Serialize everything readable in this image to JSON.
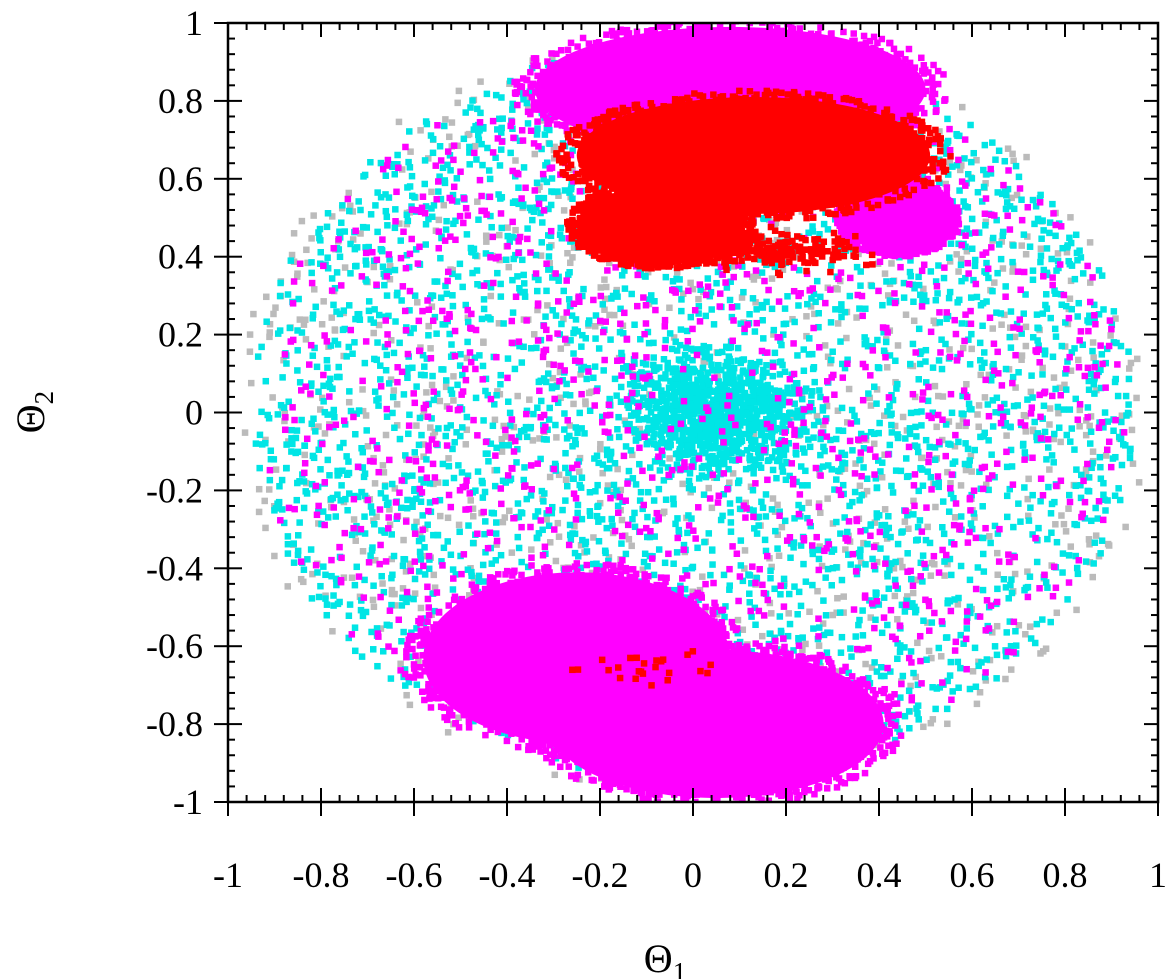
{
  "chart_data": {
    "type": "scatter",
    "title": "",
    "xlabel": "Θ",
    "xlabel_subscript": "1",
    "ylabel": "Θ",
    "ylabel_subscript": "2",
    "xlim": [
      -1,
      1
    ],
    "ylim": [
      -1,
      1
    ],
    "xticks": [
      "-1",
      "-0.8",
      "-0.6",
      "-0.4",
      "-0.2",
      "0",
      "0.2",
      "0.4",
      "0.6",
      "0.8",
      "1"
    ],
    "yticks": [
      "1",
      "0.8",
      "0.6",
      "0.4",
      "0.2",
      "0",
      "-0.2",
      "-0.4",
      "-0.6",
      "-0.8",
      "-1"
    ],
    "xtick_values": [
      -1,
      -0.8,
      -0.6,
      -0.4,
      -0.2,
      0,
      0.2,
      0.4,
      0.6,
      0.8,
      1
    ],
    "ytick_values": [
      1,
      0.8,
      0.6,
      0.4,
      0.2,
      0,
      -0.2,
      -0.4,
      -0.6,
      -0.8,
      -1
    ],
    "grid": false,
    "legend": "none",
    "series": [
      {
        "color": "#bbbbbb",
        "regions": [
          {
            "shape": "disk-scatter",
            "cx": 0.0,
            "cy": 0.0,
            "r": 0.98,
            "count": 1100
          }
        ]
      },
      {
        "color": "#00e5e5",
        "regions": [
          {
            "shape": "disk-scatter",
            "cx": 0.0,
            "cy": 0.0,
            "r": 0.95,
            "count": 3200
          },
          {
            "shape": "blob",
            "cx": 0.05,
            "cy": 0.0,
            "rx": 0.25,
            "ry": 0.2,
            "count": 900
          }
        ]
      },
      {
        "color": "#ff00ff",
        "regions": [
          {
            "shape": "disk-scatter",
            "cx": 0.0,
            "cy": 0.0,
            "r": 0.93,
            "count": 1300
          },
          {
            "shape": "dense-cap",
            "cx": 0.08,
            "cy": 0.83,
            "rx": 0.42,
            "ry": 0.16
          },
          {
            "shape": "dense-cap",
            "cx": 0.44,
            "cy": 0.5,
            "rx": 0.12,
            "ry": 0.09
          },
          {
            "shape": "dense-cap",
            "cx": -0.25,
            "cy": -0.63,
            "rx": 0.33,
            "ry": 0.22
          },
          {
            "shape": "dense-cap",
            "cx": 0.05,
            "cy": -0.8,
            "rx": 0.36,
            "ry": 0.19
          }
        ]
      },
      {
        "color": "#ff0000",
        "regions": [
          {
            "shape": "dense-cap",
            "cx": 0.13,
            "cy": 0.66,
            "rx": 0.38,
            "ry": 0.15
          },
          {
            "shape": "dense-cap",
            "cx": -0.07,
            "cy": 0.48,
            "rx": 0.18,
            "ry": 0.1
          },
          {
            "shape": "sparse",
            "cx": 0.15,
            "cy": 0.42,
            "rx": 0.3,
            "ry": 0.07,
            "count": 220
          },
          {
            "shape": "sparse",
            "cx": -0.1,
            "cy": -0.65,
            "rx": 0.2,
            "ry": 0.07,
            "count": 25
          }
        ]
      }
    ]
  }
}
